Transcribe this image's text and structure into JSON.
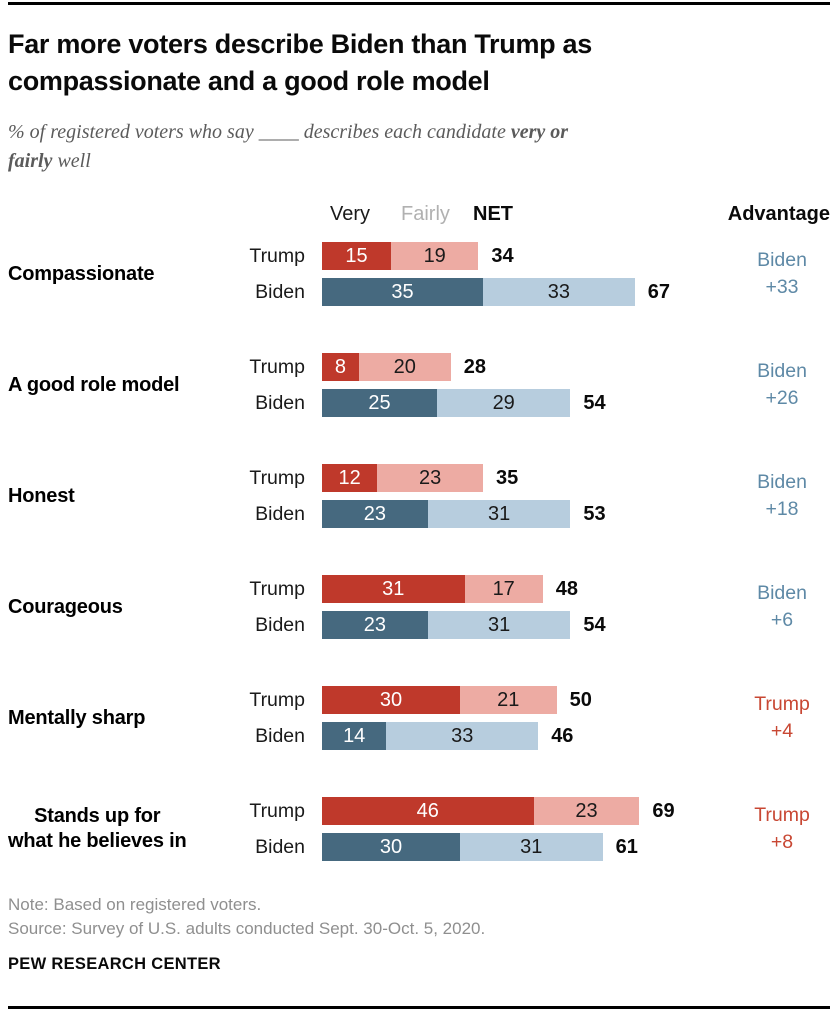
{
  "page": {
    "title": "Far more voters describe Biden than Trump as\ncompassionate and a good role model",
    "subtitle": {
      "prefix": "% of registered voters who say ____ describes each candidate ",
      "bold_line1": "very or",
      "bold_line2": "fairly",
      "suffix": " well"
    },
    "note": "Note: Based on registered voters.",
    "source": "Source: Survey of U.S. adults conducted Sept. 30-Oct. 5, 2020.",
    "brand": "PEW RESEARCH CENTER"
  },
  "colors": {
    "trump_very": "#bf392b",
    "trump_fairly": "#edaba3",
    "biden_very": "#46697f",
    "biden_fairly": "#b7cdde",
    "advantage_biden_text": "#5e89a6",
    "advantage_trump_text": "#c84733"
  },
  "chart_data": {
    "type": "bar",
    "orientation": "horizontal",
    "stacked": true,
    "value_unit": "percent",
    "column_headers": {
      "very": "Very",
      "fairly": "Fairly",
      "net": "NET",
      "advantage": "Advantage"
    },
    "row_labels": [
      "Trump",
      "Biden"
    ],
    "groups": [
      {
        "trait": "Compassionate",
        "trump": {
          "very": 15,
          "fairly": 19,
          "net": 34
        },
        "biden": {
          "very": 35,
          "fairly": 33,
          "net": 67
        },
        "advantage": {
          "who": "Biden",
          "value": "+33"
        }
      },
      {
        "trait": "A good role model",
        "trump": {
          "very": 8,
          "fairly": 20,
          "net": 28
        },
        "biden": {
          "very": 25,
          "fairly": 29,
          "net": 54
        },
        "advantage": {
          "who": "Biden",
          "value": "+26"
        }
      },
      {
        "trait": "Honest",
        "trump": {
          "very": 12,
          "fairly": 23,
          "net": 35
        },
        "biden": {
          "very": 23,
          "fairly": 31,
          "net": 53
        },
        "advantage": {
          "who": "Biden",
          "value": "+18"
        }
      },
      {
        "trait": "Courageous",
        "trump": {
          "very": 31,
          "fairly": 17,
          "net": 48
        },
        "biden": {
          "very": 23,
          "fairly": 31,
          "net": 54
        },
        "advantage": {
          "who": "Biden",
          "value": "+6"
        }
      },
      {
        "trait": "Mentally sharp",
        "trump": {
          "very": 30,
          "fairly": 21,
          "net": 50
        },
        "biden": {
          "very": 14,
          "fairly": 33,
          "net": 46
        },
        "advantage": {
          "who": "Trump",
          "value": "+4"
        }
      },
      {
        "trait": "Stands up for\nwhat he believes in",
        "trump": {
          "very": 46,
          "fairly": 23,
          "net": 69
        },
        "biden": {
          "very": 30,
          "fairly": 31,
          "net": 61
        },
        "advantage": {
          "who": "Trump",
          "value": "+8"
        }
      }
    ]
  }
}
